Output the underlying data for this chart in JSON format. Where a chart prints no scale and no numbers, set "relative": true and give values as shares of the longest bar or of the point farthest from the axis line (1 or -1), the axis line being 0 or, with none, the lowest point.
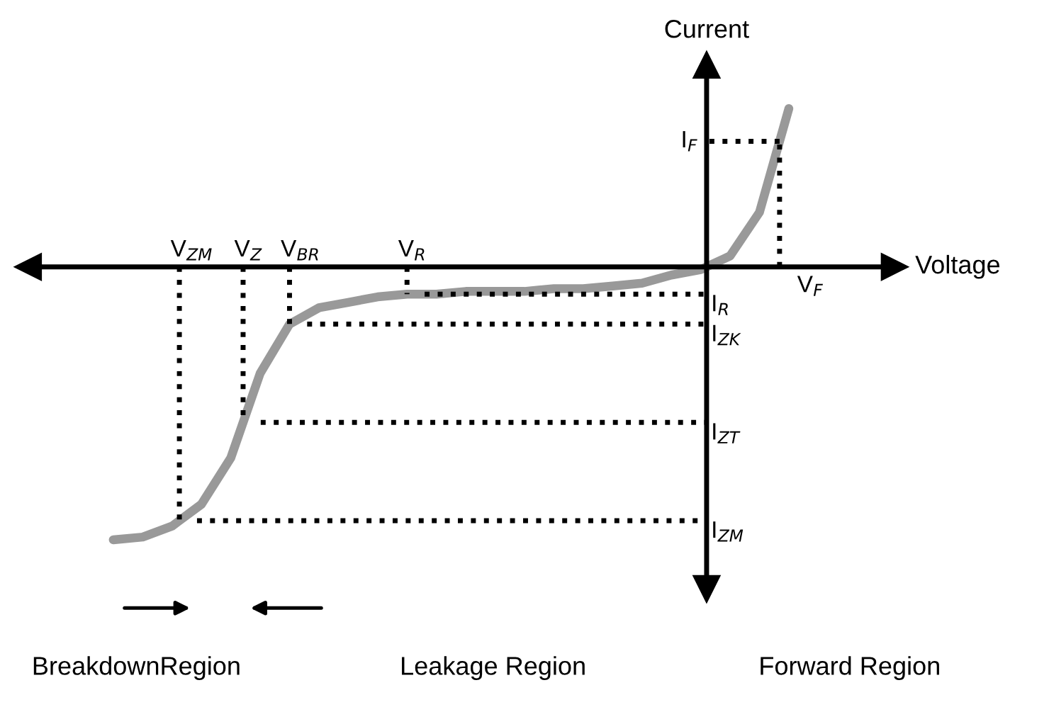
{
  "chart_data": {
    "type": "line",
    "relative": true,
    "xlabel": "Voltage",
    "ylabel": "Current",
    "categories": [
      null,
      null,
      null,
      null,
      null,
      null,
      null,
      null,
      null,
      null,
      null,
      null,
      null,
      null,
      null,
      null,
      null,
      null,
      null,
      null,
      null,
      null,
      null,
      null
    ],
    "series": [
      {
        "color": "#999999",
        "values": [
          -1.0,
          -0.99,
          -0.95,
          -0.87,
          -0.7,
          -0.39,
          -0.21,
          -0.15,
          -0.13,
          -0.11,
          -0.1,
          -0.1,
          -0.09,
          -0.09,
          -0.09,
          -0.08,
          -0.08,
          -0.07,
          -0.06,
          -0.03,
          -0.01,
          0.04,
          0.2,
          0.58
        ]
      }
    ],
    "ref_lines": [
      {
        "axis": "y",
        "value": -0.93,
        "label": "I$_{ZM}$",
        "line_style": "dotted",
        "color": "#000000"
      },
      {
        "axis": "y",
        "value": -0.57,
        "label": "I$_{ZT}$",
        "line_style": "dotted",
        "color": "#000000"
      },
      {
        "axis": "y",
        "value": -0.21,
        "label": "I$_{ZK}$",
        "line_style": "dotted",
        "color": "#000000"
      },
      {
        "axis": "y",
        "value": -0.1,
        "label": "I$_{R}$",
        "line_style": "dotted",
        "color": "#000000"
      },
      {
        "axis": "y",
        "value": 0.46,
        "label": "I$_{F}$",
        "line_style": "dotted",
        "color": "#000000"
      }
    ],
    "annotations": [
      "V$_{ZM}$",
      "V$_{Z}$",
      "V$_{BR}$",
      "V$_{R}$",
      "V$_{F}$",
      "BreakdownRegion",
      "Leakage Region",
      "Forward Region"
    ],
    "line_style": "solid"
  }
}
